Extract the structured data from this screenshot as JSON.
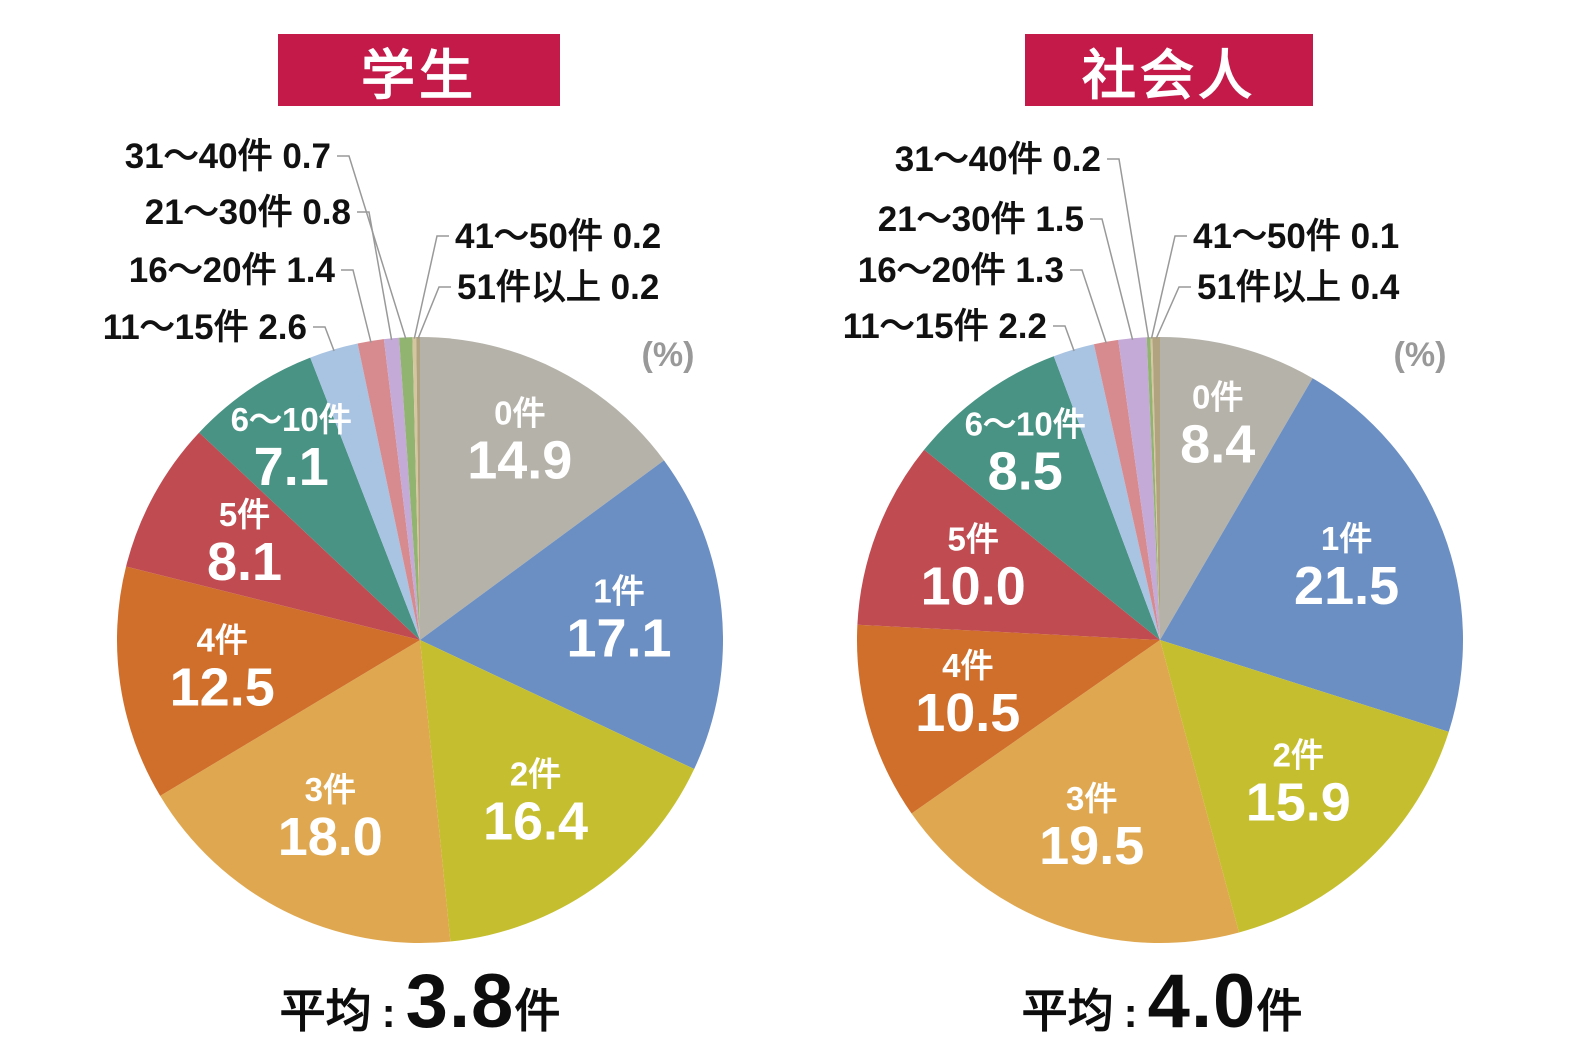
{
  "accent_color": "#c31a4a",
  "chart_data": [
    {
      "type": "pie",
      "title": "学生",
      "unit": "(%)",
      "direction": "clockwise",
      "start_angle_deg": 0,
      "legend_position": "none",
      "categories": [
        "0件",
        "1件",
        "2件",
        "3件",
        "4件",
        "5件",
        "6〜10件",
        "11〜15件",
        "16〜20件",
        "21〜30件",
        "31〜40件",
        "41〜50件",
        "51件以上"
      ],
      "values": [
        14.9,
        17.1,
        16.4,
        18.0,
        12.5,
        8.1,
        7.1,
        2.6,
        1.4,
        0.8,
        0.7,
        0.2,
        0.2
      ],
      "colors": [
        "#b5b2a9",
        "#6b8fc3",
        "#c5bf2f",
        "#dfa850",
        "#d06f2b",
        "#c04b51",
        "#489384",
        "#a9c3e2",
        "#d78b8f",
        "#c4aad6",
        "#91b470",
        "#d6c6a0",
        "#b2a380"
      ],
      "average_label": {
        "prefix": "平均",
        "colon": ":",
        "value": "3.8",
        "unit": "件"
      }
    },
    {
      "type": "pie",
      "title": "社会人",
      "unit": "(%)",
      "direction": "clockwise",
      "start_angle_deg": 0,
      "legend_position": "none",
      "categories": [
        "0件",
        "1件",
        "2件",
        "3件",
        "4件",
        "5件",
        "6〜10件",
        "11〜15件",
        "16〜20件",
        "21〜30件",
        "31〜40件",
        "41〜50件",
        "51件以上"
      ],
      "values": [
        8.4,
        21.5,
        15.9,
        19.5,
        10.5,
        10.0,
        8.5,
        2.2,
        1.3,
        1.5,
        0.2,
        0.1,
        0.4
      ],
      "colors": [
        "#b5b2a9",
        "#6b8fc3",
        "#c5bf2f",
        "#dfa850",
        "#d06f2b",
        "#c04b51",
        "#489384",
        "#a9c3e2",
        "#d78b8f",
        "#c4aad6",
        "#91b470",
        "#d6c6a0",
        "#b2a380"
      ],
      "average_label": {
        "prefix": "平均",
        "colon": ":",
        "value": "4.0",
        "unit": "件"
      }
    }
  ]
}
